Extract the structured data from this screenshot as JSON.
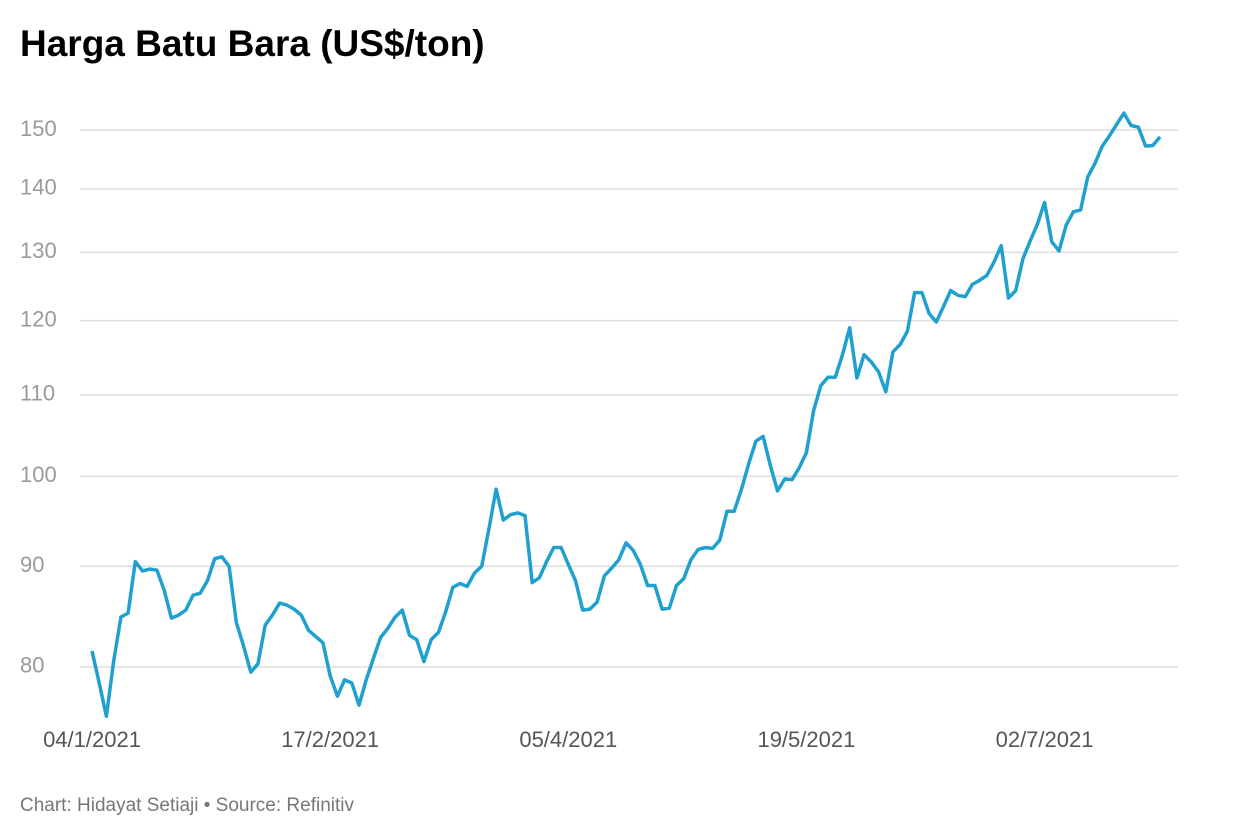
{
  "chart_data": {
    "type": "line",
    "title": "Harga Batu Bara (US$/ton)",
    "source": "Chart: Hidayat Setiaji • Source: Refinitiv",
    "yscale": "log",
    "grid": true,
    "color": "#1fa0cf",
    "ylim": [
      75,
      155
    ],
    "yticks": [
      80,
      90,
      100,
      110,
      120,
      130,
      140,
      150
    ],
    "categories": [
      "04/1/2021",
      null,
      null,
      null,
      null,
      null,
      null,
      null,
      null,
      null,
      null,
      null,
      null,
      null,
      null,
      null,
      null,
      null,
      null,
      null,
      null,
      null,
      null,
      null,
      null,
      null,
      null,
      null,
      null,
      null,
      null,
      null,
      null,
      "17/2/2021",
      null,
      null,
      null,
      null,
      null,
      null,
      null,
      null,
      null,
      null,
      null,
      null,
      null,
      null,
      null,
      null,
      null,
      null,
      null,
      null,
      null,
      null,
      null,
      null,
      null,
      null,
      null,
      null,
      null,
      null,
      null,
      null,
      "05/4/2021",
      null,
      null,
      null,
      null,
      null,
      null,
      null,
      null,
      null,
      null,
      null,
      null,
      null,
      null,
      null,
      null,
      null,
      null,
      null,
      null,
      null,
      null,
      null,
      null,
      null,
      null,
      null,
      null,
      null,
      null,
      null,
      null,
      "19/5/2021",
      null,
      null,
      null,
      null,
      null,
      null,
      null,
      null,
      null,
      null,
      null,
      null,
      null,
      null,
      null,
      null,
      null,
      null,
      null,
      null,
      null,
      null,
      null,
      null,
      null,
      null,
      null,
      null,
      null,
      null,
      null,
      null,
      "02/7/2021",
      null,
      null,
      null,
      null,
      null,
      null,
      null,
      null,
      null,
      null,
      null,
      null,
      null,
      null,
      null,
      null
    ],
    "values": [
      81.5,
      78.5,
      75.5,
      80.5,
      84.8,
      85.2,
      90.5,
      89.5,
      89.7,
      89.6,
      87.5,
      84.7,
      85,
      85.5,
      87,
      87.2,
      88.5,
      90.8,
      91,
      90,
      84.3,
      82,
      79.5,
      80.3,
      84,
      85,
      86.2,
      86,
      85.6,
      85,
      83.5,
      82.9,
      82.3,
      79.2,
      77.3,
      78.8,
      78.5,
      76.5,
      78.8,
      80.8,
      82.8,
      83.7,
      84.8,
      85.5,
      83,
      82.6,
      80.5,
      82.6,
      83.3,
      85.3,
      87.8,
      88.2,
      87.9,
      89.3,
      90,
      94,
      98.5,
      95,
      95.6,
      95.8,
      95.5,
      88.3,
      88.8,
      90.5,
      92,
      92,
      90.2,
      88.5,
      85.5,
      85.6,
      86.3,
      89,
      89.8,
      90.7,
      92.5,
      91.7,
      90.2,
      88,
      88,
      85.6,
      85.7,
      88,
      88.7,
      90.7,
      91.8,
      92,
      91.9,
      92.8,
      96,
      96,
      98.5,
      101.5,
      104.2,
      104.8,
      101.3,
      98.3,
      99.7,
      99.6,
      101,
      102.8,
      108,
      111.2,
      112.3,
      112.3,
      115.3,
      119,
      112.2,
      115.3,
      114.3,
      113,
      110.4,
      115.7,
      116.7,
      118.5,
      124,
      124,
      121,
      119.8,
      122,
      124.3,
      123.6,
      123.4,
      125.2,
      125.8,
      126.5,
      128.5,
      131,
      123.2,
      124.3,
      129,
      131.7,
      134.3,
      137.8,
      131.6,
      130.2,
      134.2,
      136.3,
      136.6,
      142,
      144.3,
      147.2,
      149,
      151,
      153,
      150.8,
      150.5,
      147.2,
      147.3,
      148.8
    ]
  }
}
